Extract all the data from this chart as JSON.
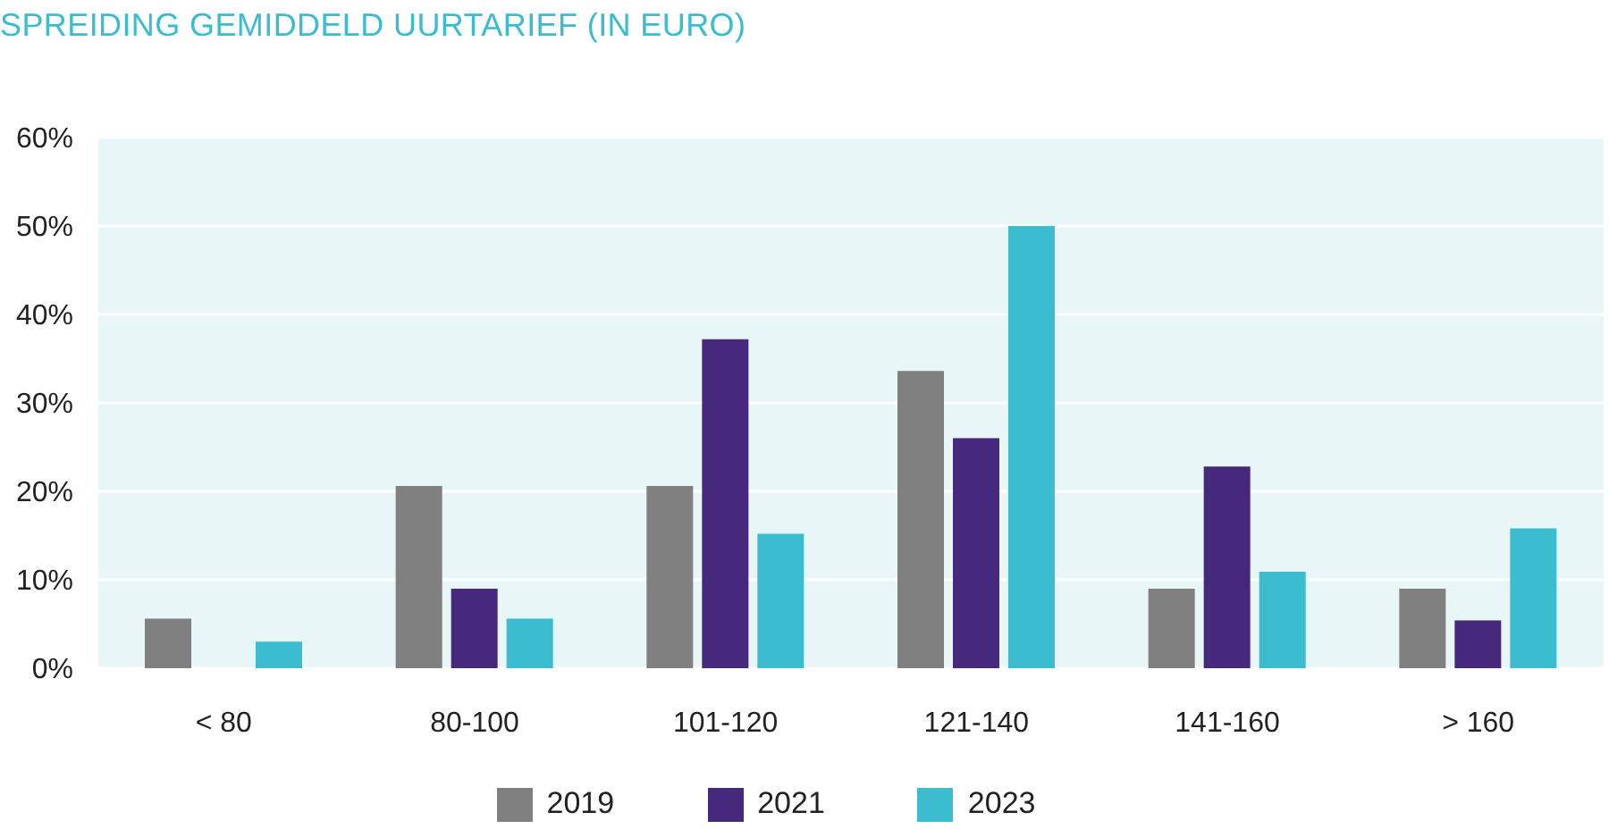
{
  "chart_data": {
    "type": "bar",
    "title": "SPREIDING GEMIDDELD UURTARIEF (IN EURO)",
    "categories": [
      "< 80",
      "80-100",
      "101-120",
      "121-140",
      "141-160",
      "> 160"
    ],
    "series": [
      {
        "name": "2019",
        "color": "#808080",
        "values": [
          5.6,
          20.6,
          20.6,
          33.6,
          9.0,
          9.0
        ]
      },
      {
        "name": "2021",
        "color": "#46297d",
        "values": [
          0,
          9.0,
          37.2,
          26.0,
          22.8,
          5.4
        ]
      },
      {
        "name": "2023",
        "color": "#3bbccf",
        "values": [
          3.0,
          5.6,
          15.2,
          50.0,
          10.9,
          15.8
        ]
      }
    ],
    "ylim": [
      0,
      60
    ],
    "yticks": [
      {
        "value": 0,
        "label": "0%"
      },
      {
        "value": 10,
        "label": "10%"
      },
      {
        "value": 20,
        "label": "20%"
      },
      {
        "value": 30,
        "label": "30%"
      },
      {
        "value": 40,
        "label": "40%"
      },
      {
        "value": 50,
        "label": "50%"
      },
      {
        "value": 60,
        "label": "60%"
      }
    ],
    "grid": "y",
    "legend": "bottom"
  }
}
